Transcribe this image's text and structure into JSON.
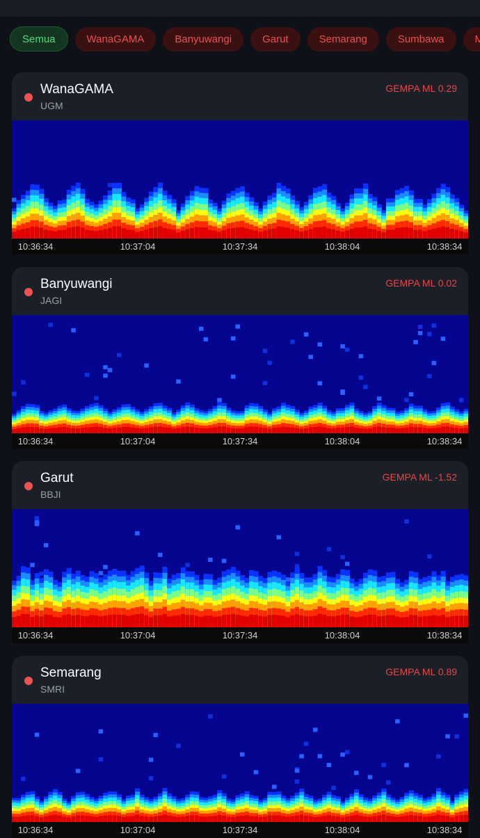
{
  "filters": [
    "Semua",
    "WanaGAMA",
    "Banyuwangi",
    "Garut",
    "Semarang",
    "Sumbawa",
    "Ma"
  ],
  "cards": [
    {
      "name": "WanaGAMA",
      "station": "UGM",
      "event": "GEMPA ML 0.29",
      "times": [
        "10:36:34",
        "10:37:04",
        "10:37:34",
        "10:38:04",
        "10:38:34"
      ]
    },
    {
      "name": "Banyuwangi",
      "station": "JAGI",
      "event": "GEMPA ML 0.02",
      "times": [
        "10:36:34",
        "10:37:04",
        "10:37:34",
        "10:38:04",
        "10:38:34"
      ]
    },
    {
      "name": "Garut",
      "station": "BBJI",
      "event": "GEMPA ML -1.52",
      "times": [
        "10:36:34",
        "10:37:04",
        "10:37:34",
        "10:38:04",
        "10:38:34"
      ]
    },
    {
      "name": "Semarang",
      "station": "SMRI",
      "event": "GEMPA ML 0.89",
      "times": [
        "10:36:34",
        "10:37:04",
        "10:37:34",
        "10:38:04",
        "10:38:34"
      ]
    }
  ]
}
